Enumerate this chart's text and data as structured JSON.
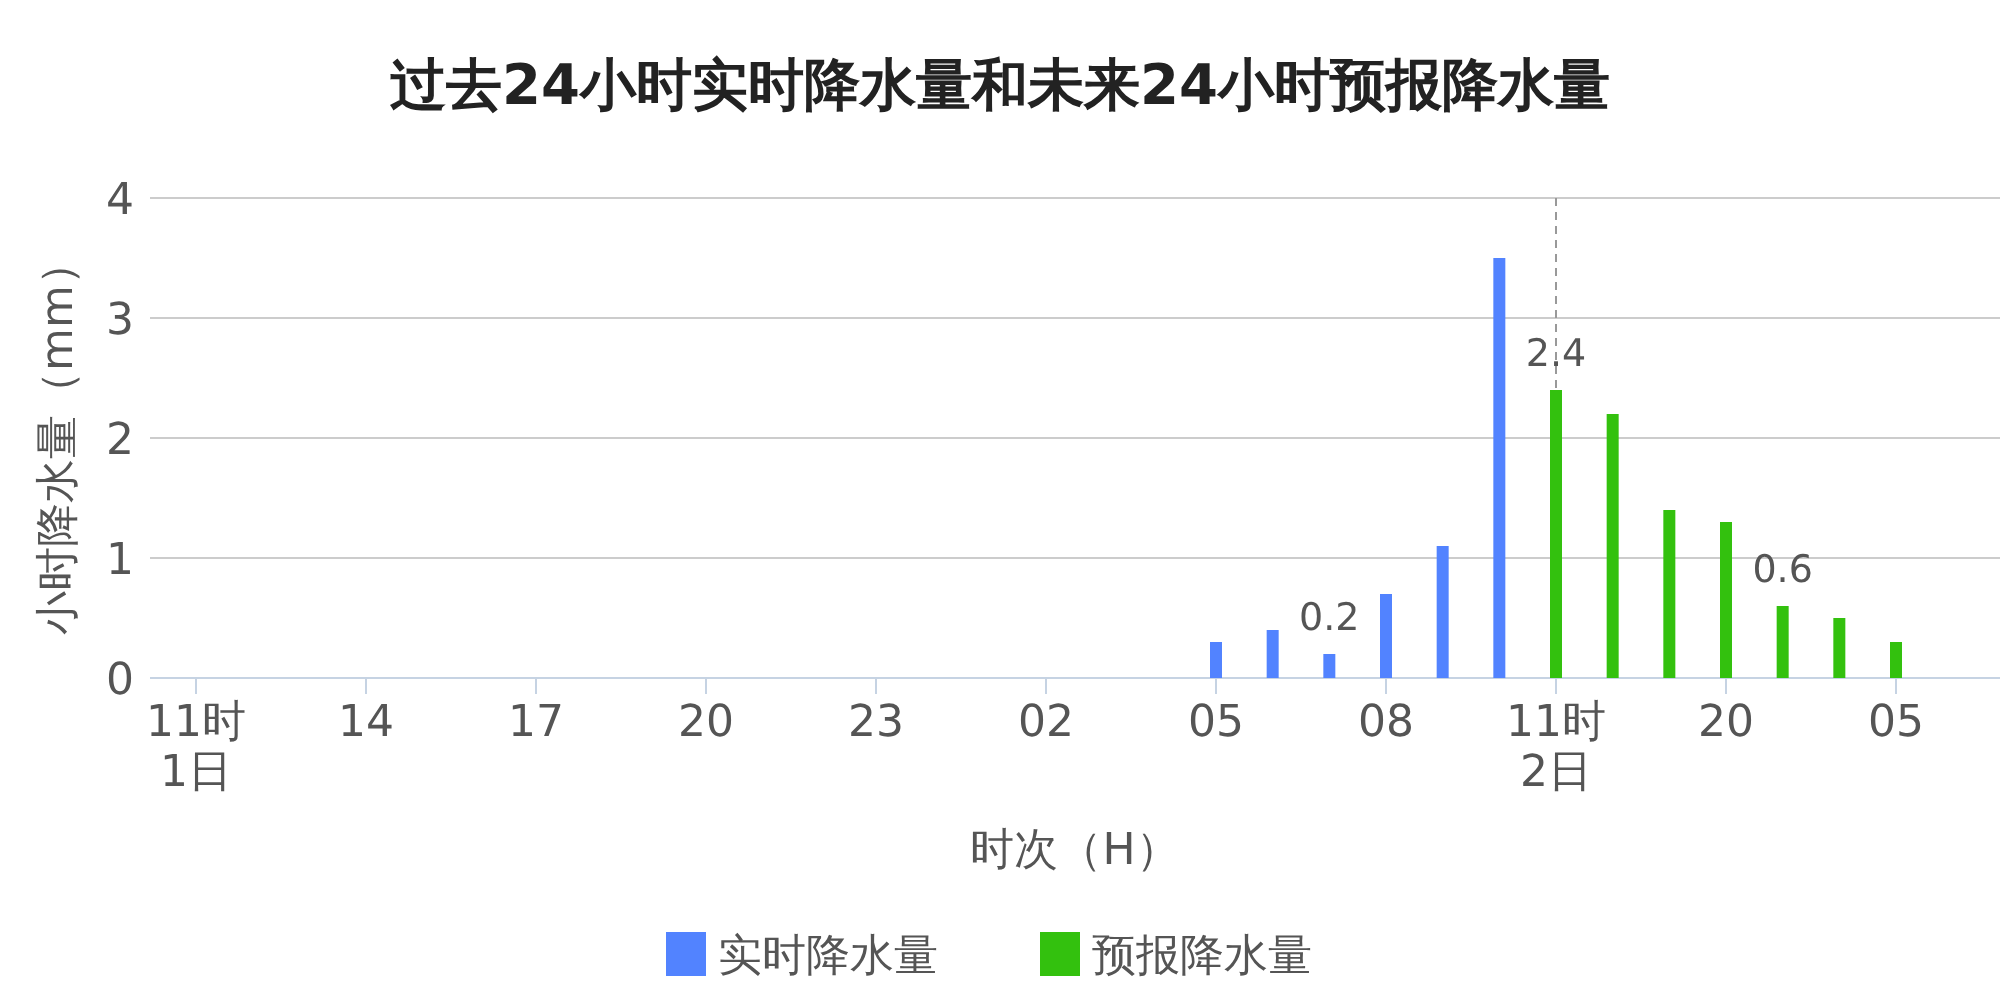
{
  "chart_data": {
    "type": "bar",
    "title": "过去24小时实时降水量和未来24小时预报降水量",
    "xlabel": "时次（H）",
    "ylabel": "小时降水量（mm）",
    "categories": [
      "11时\n1日",
      null,
      null,
      "14",
      null,
      null,
      "17",
      null,
      null,
      "20",
      null,
      null,
      "23",
      null,
      null,
      "02",
      null,
      null,
      "05",
      null,
      null,
      "08",
      null,
      null,
      "11时\n2日",
      null,
      null,
      "20",
      null,
      null,
      "05"
    ],
    "series": [
      {
        "name": "实时降水量",
        "color": "#5283ff",
        "values": [
          0,
          0,
          0,
          0,
          0,
          0,
          0,
          0,
          0,
          0,
          0,
          0,
          0,
          0,
          0,
          0,
          0,
          0,
          0.3,
          0.4,
          0.2,
          0.7,
          1.1,
          3.5,
          null,
          null,
          null,
          null,
          null,
          null,
          null
        ],
        "value_labels": [
          null,
          null,
          null,
          null,
          null,
          null,
          null,
          null,
          null,
          null,
          null,
          null,
          null,
          null,
          null,
          null,
          null,
          null,
          null,
          null,
          "0.2",
          null,
          null,
          null,
          null,
          null,
          null,
          null,
          null,
          null,
          null
        ]
      },
      {
        "name": "预报降水量",
        "color": "#33c10e",
        "values": [
          null,
          null,
          null,
          null,
          null,
          null,
          null,
          null,
          null,
          null,
          null,
          null,
          null,
          null,
          null,
          null,
          null,
          null,
          null,
          null,
          null,
          null,
          null,
          null,
          2.4,
          2.2,
          1.4,
          1.3,
          0.6,
          0.5,
          0.3
        ],
        "value_labels": [
          null,
          null,
          null,
          null,
          null,
          null,
          null,
          null,
          null,
          null,
          null,
          null,
          null,
          null,
          null,
          null,
          null,
          null,
          null,
          null,
          null,
          null,
          null,
          null,
          "2.4",
          null,
          null,
          null,
          "0.6",
          null,
          null
        ]
      }
    ],
    "ylim": [
      0,
      4
    ],
    "yticks": [
      0,
      1,
      2,
      3,
      4
    ],
    "grid": "y",
    "legend": "bottom",
    "ref_lines": [
      {
        "axis": "x",
        "value": "11时\n2日",
        "color": "#999999",
        "line_style": "dashed"
      }
    ]
  }
}
